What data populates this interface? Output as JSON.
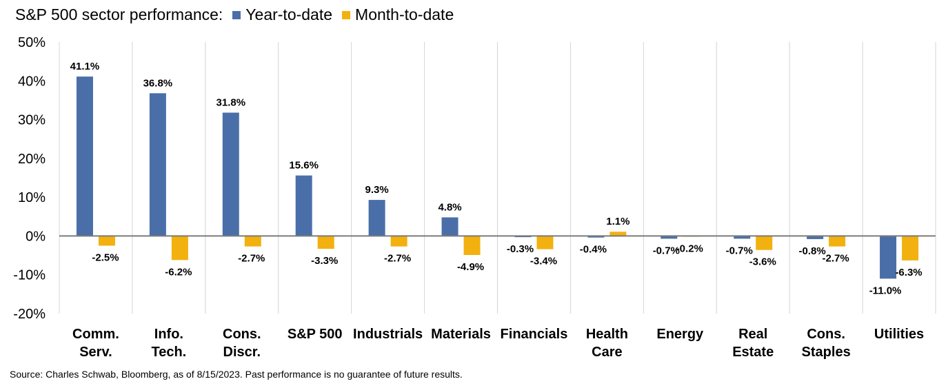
{
  "chart_data": {
    "type": "bar",
    "title": "S&P 500 sector performance:",
    "categories": [
      [
        "Comm.",
        "Serv."
      ],
      [
        "Info.",
        "Tech."
      ],
      [
        "Cons.",
        "Discr."
      ],
      [
        "S&P 500"
      ],
      [
        "Industrials"
      ],
      [
        "Materials"
      ],
      [
        "Financials"
      ],
      [
        "Health",
        "Care"
      ],
      [
        "Energy"
      ],
      [
        "Real",
        "Estate"
      ],
      [
        "Cons.",
        "Staples"
      ],
      [
        "Utilities"
      ]
    ],
    "series": [
      {
        "name": "Year-to-date",
        "color": "#4A6FA8",
        "values": [
          41.1,
          36.8,
          31.8,
          15.6,
          9.3,
          4.8,
          -0.3,
          -0.4,
          -0.7,
          -0.7,
          -0.8,
          -11.0
        ],
        "labels": [
          "41.1%",
          "36.8%",
          "31.8%",
          "15.6%",
          "9.3%",
          "4.8%",
          "-0.3%",
          "-0.4%",
          "-0.7%",
          "-0.7%",
          "-0.8%",
          "-11.0%"
        ]
      },
      {
        "name": "Month-to-date",
        "color": "#F2B10F",
        "values": [
          -2.5,
          -6.2,
          -2.7,
          -3.3,
          -2.7,
          -4.9,
          -3.4,
          1.1,
          -0.2,
          -3.6,
          -2.7,
          -6.3
        ],
        "labels": [
          "-2.5%",
          "-6.2%",
          "-2.7%",
          "-3.3%",
          "-2.7%",
          "-4.9%",
          "-3.4%",
          "1.1%",
          "-0.2%",
          "-3.6%",
          "-2.7%",
          "-6.3%"
        ]
      }
    ],
    "ylim": [
      -20,
      50
    ],
    "yticks": [
      -20,
      -10,
      0,
      10,
      20,
      30,
      40,
      50
    ],
    "ytick_labels": [
      "-20%",
      "-10%",
      "0%",
      "10%",
      "20%",
      "30%",
      "40%",
      "50%"
    ],
    "grid": "vertical separators between categories",
    "legend_position": "top, inline with title"
  },
  "source": "Source: Charles Schwab, Bloomberg, as of 8/15/2023.  Past performance is no guarantee of future results."
}
